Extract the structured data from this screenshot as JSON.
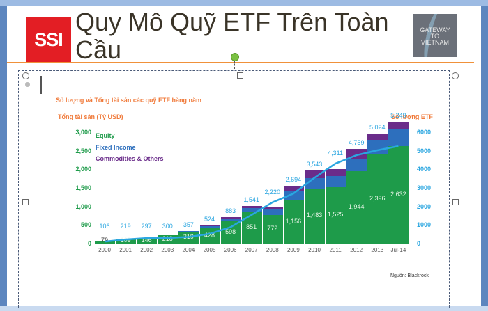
{
  "slide": {
    "title": "Quy Mô Quỹ ETF Trên Toàn Cầu",
    "logo_left": "SSI",
    "logo_right_lines": [
      "GATEWAY",
      "TO",
      "VIETNAM"
    ]
  },
  "chart_data": {
    "type": "bar",
    "title": "Số lượng và Tổng tài sản các quỹ ETF hàng năm",
    "ylabel": "Tổng tài sản (Tỷ USD)",
    "y2label": "Số lượng ETF",
    "categories": [
      "2000",
      "2001",
      "2002",
      "2003",
      "2004",
      "2005",
      "2006",
      "2007",
      "2008",
      "2009",
      "2010",
      "2011",
      "2012",
      "2013",
      "Jul-14"
    ],
    "ylim": [
      0,
      3000
    ],
    "y2lim": [
      0,
      6000
    ],
    "yticks": [
      "3,000",
      "2,500",
      "2,000",
      "1,500",
      "1,000",
      "500",
      "0"
    ],
    "y2ticks": [
      "6000",
      "5000",
      "4000",
      "3000",
      "2000",
      "1000",
      "0"
    ],
    "legend": [
      "Equity",
      "Fixed Income",
      "Commodities & Others"
    ],
    "colors": {
      "equity": "#1e9b4a",
      "fixed_income": "#2d6fbd",
      "commodities": "#6a2c8a",
      "count_line": "#2aa6e0"
    },
    "series": [
      {
        "name": "Equity",
        "values": [
          79,
          109,
          146,
          218,
          319,
          428,
          598,
          851,
          772,
          1156,
          1483,
          1525,
          1944,
          2396,
          2632
        ],
        "labels": [
          "79",
          "109",
          "146",
          "218",
          "319",
          "428",
          "598",
          "851",
          "772",
          "1,156",
          "1,483",
          "1,525",
          "1,944",
          "2,396",
          "2,632"
        ]
      },
      {
        "name": "Fixed Income",
        "values": [
          0,
          0,
          0,
          4,
          20,
          40,
          60,
          100,
          160,
          250,
          280,
          300,
          350,
          400,
          450
        ]
      },
      {
        "name": "Commodities & Others",
        "values": [
          0,
          0,
          0,
          2,
          5,
          20,
          50,
          70,
          70,
          150,
          200,
          180,
          250,
          170,
          200
        ]
      },
      {
        "name": "Số lượng ETF",
        "axis": "right",
        "type": "line",
        "values": [
          106,
          219,
          297,
          300,
          357,
          524,
          883,
          1541,
          2220,
          2694,
          3543,
          4311,
          4759,
          5024,
          5249
        ],
        "labels": [
          "106",
          "219",
          "297",
          "300",
          "357",
          "524",
          "883",
          "1,541",
          "2,220",
          "2,694",
          "3,543",
          "4,311",
          "4,759",
          "5,024",
          "5,249"
        ]
      }
    ],
    "source": "Nguồn: Blackrock"
  }
}
